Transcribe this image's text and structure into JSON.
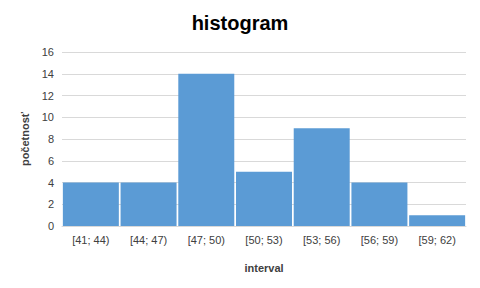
{
  "chart_data": {
    "type": "bar",
    "title": "histogram",
    "x_label": "interval",
    "y_label": "početnosť",
    "categories": [
      "[41; 44)",
      "[44; 47)",
      "[47; 50)",
      "[50; 53)",
      "[53; 56)",
      "[56; 59)",
      "[59; 62)"
    ],
    "values": [
      4,
      4,
      14,
      5,
      9,
      4,
      1
    ],
    "color": "#5b9bd5",
    "ylim": [
      0,
      16
    ],
    "yticks": [
      0,
      2,
      4,
      6,
      8,
      10,
      12,
      14,
      16
    ],
    "grid": true
  }
}
